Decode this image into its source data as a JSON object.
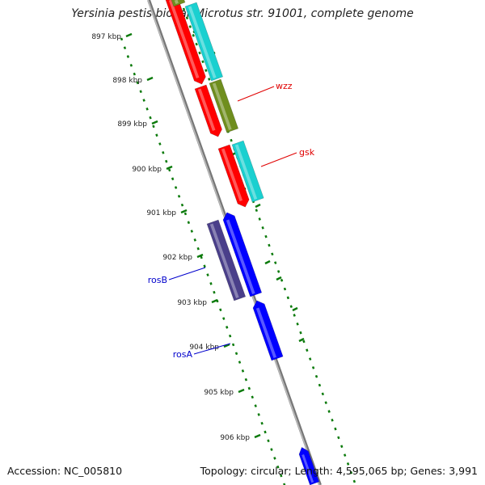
{
  "title": "Yersinia pestis biovar Microtus str. 91001, complete genome",
  "footer": {
    "accession": "Accession: NC_005810",
    "topology": "Topology: circular; Length: 4,595,065 bp; Genes: 3,991"
  },
  "ticks": [
    "897 kbp",
    "898 kbp",
    "899 kbp",
    "900 kbp",
    "901 kbp",
    "902 kbp",
    "903 kbp",
    "904 kbp",
    "905 kbp",
    "906 kbp"
  ],
  "gene_labels": [
    {
      "name": "wzz",
      "color": "#e00000"
    },
    {
      "name": "gsk",
      "color": "#e00000"
    },
    {
      "name": "rosB",
      "color": "#0000cc"
    },
    {
      "name": "rosA",
      "color": "#0000cc"
    }
  ],
  "colors": {
    "red": "#ff0000",
    "cyan": "#1ad0d0",
    "olive": "#6f8e1e",
    "blue": "#0000ff",
    "purple": "#4a3f8a",
    "backbone": "#8a8a8a",
    "tick_green": "#0b7a0b"
  }
}
